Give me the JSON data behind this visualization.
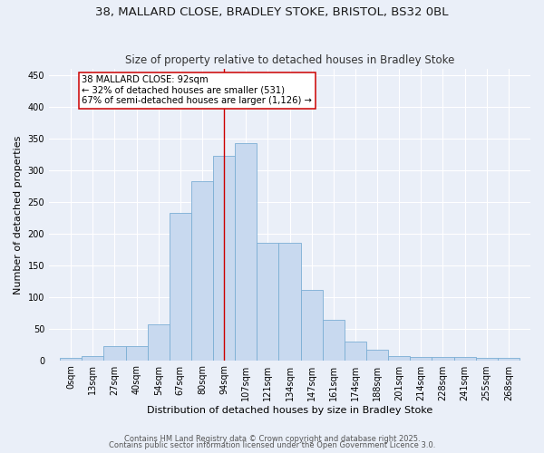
{
  "title1": "38, MALLARD CLOSE, BRADLEY STOKE, BRISTOL, BS32 0BL",
  "title2": "Size of property relative to detached houses in Bradley Stoke",
  "xlabel": "Distribution of detached houses by size in Bradley Stoke",
  "ylabel": "Number of detached properties",
  "bin_labels": [
    "0sqm",
    "13sqm",
    "27sqm",
    "40sqm",
    "54sqm",
    "67sqm",
    "80sqm",
    "94sqm",
    "107sqm",
    "121sqm",
    "134sqm",
    "147sqm",
    "161sqm",
    "174sqm",
    "188sqm",
    "201sqm",
    "214sqm",
    "228sqm",
    "241sqm",
    "255sqm",
    "268sqm"
  ],
  "bar_heights": [
    3,
    7,
    22,
    22,
    56,
    232,
    283,
    323,
    343,
    185,
    185,
    111,
    64,
    30,
    17,
    7,
    5,
    5,
    5,
    3,
    3
  ],
  "bar_color": "#c8d9ef",
  "bar_edge_color": "#7baed4",
  "vline_x": 7.5,
  "vline_color": "#cc0000",
  "annotation_text": "38 MALLARD CLOSE: 92sqm\n← 32% of detached houses are smaller (531)\n67% of semi-detached houses are larger (1,126) →",
  "annotation_box_color": "#ffffff",
  "annotation_edge_color": "#cc0000",
  "ylim": [
    0,
    460
  ],
  "yticks": [
    0,
    50,
    100,
    150,
    200,
    250,
    300,
    350,
    400,
    450
  ],
  "bg_color": "#eaeff8",
  "footer1": "Contains HM Land Registry data © Crown copyright and database right 2025.",
  "footer2": "Contains public sector information licensed under the Open Government Licence 3.0.",
  "title_fontsize": 9.5,
  "subtitle_fontsize": 8.5,
  "axis_label_fontsize": 8.0,
  "tick_fontsize": 7.0,
  "annotation_fontsize": 7.2,
  "footer_fontsize": 6.0
}
